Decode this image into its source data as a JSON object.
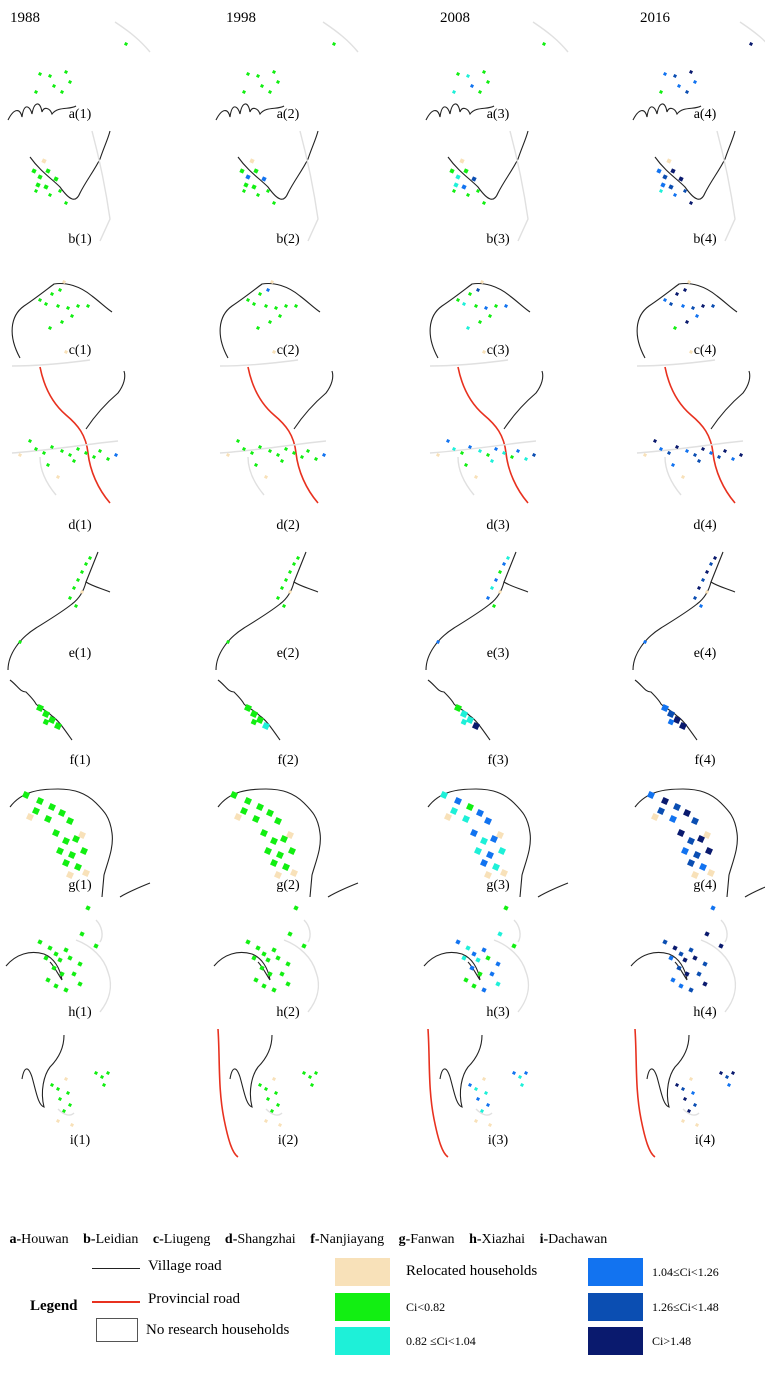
{
  "years": [
    "1988",
    "1998",
    "2008",
    "2016"
  ],
  "villages": [
    {
      "letter": "a",
      "name": "Houwan"
    },
    {
      "letter": "b",
      "name": "Leidian"
    },
    {
      "letter": "c",
      "name": "Liugeng"
    },
    {
      "letter": "d",
      "name": "Shangzhai"
    },
    {
      "letter": "f",
      "name": "Nanjiayang"
    },
    {
      "letter": "g",
      "name": "Fanwan"
    },
    {
      "letter": "h",
      "name": "Xiazhai"
    },
    {
      "letter": "i",
      "name": "Dachawan"
    }
  ],
  "legend": {
    "title": "Legend",
    "village_road": "Village road",
    "provincial_road": "Provincial road",
    "no_research": "No research households",
    "relocated": "Relocated households",
    "class1": "Ci<0.82",
    "class2": "0.82 ≤Ci<1.04",
    "class3": "1.04≤Ci<1.26",
    "class4": "1.26≤Ci<1.48",
    "class5": "Ci>1.48"
  },
  "colors": {
    "village_road": "#222222",
    "provincial_road": "#e8311f",
    "no_research": "#e6e6e6",
    "relocated": "#f8e1b9",
    "class1": "#12ef12",
    "class2": "#1ef0d8",
    "class3": "#1273f0",
    "class4": "#0b4eb2",
    "class5": "#0a1a6e"
  },
  "panel_labels": [
    [
      "a(1)",
      "a(2)",
      "a(3)",
      "a(4)"
    ],
    [
      "b(1)",
      "b(2)",
      "b(3)",
      "b(4)"
    ],
    [
      "c(1)",
      "c(2)",
      "c(3)",
      "c(4)"
    ],
    [
      "d(1)",
      "d(2)",
      "d(3)",
      "d(4)"
    ],
    [
      "e(1)",
      "e(2)",
      "e(3)",
      "e(4)"
    ],
    [
      "f(1)",
      "f(2)",
      "f(3)",
      "f(4)"
    ],
    [
      "g(1)",
      "g(2)",
      "g(3)",
      "g(4)"
    ],
    [
      "h(1)",
      "h(2)",
      "h(3)",
      "h(4)"
    ],
    [
      "i(1)",
      "i(2)",
      "i(3)",
      "i(4)"
    ]
  ]
}
